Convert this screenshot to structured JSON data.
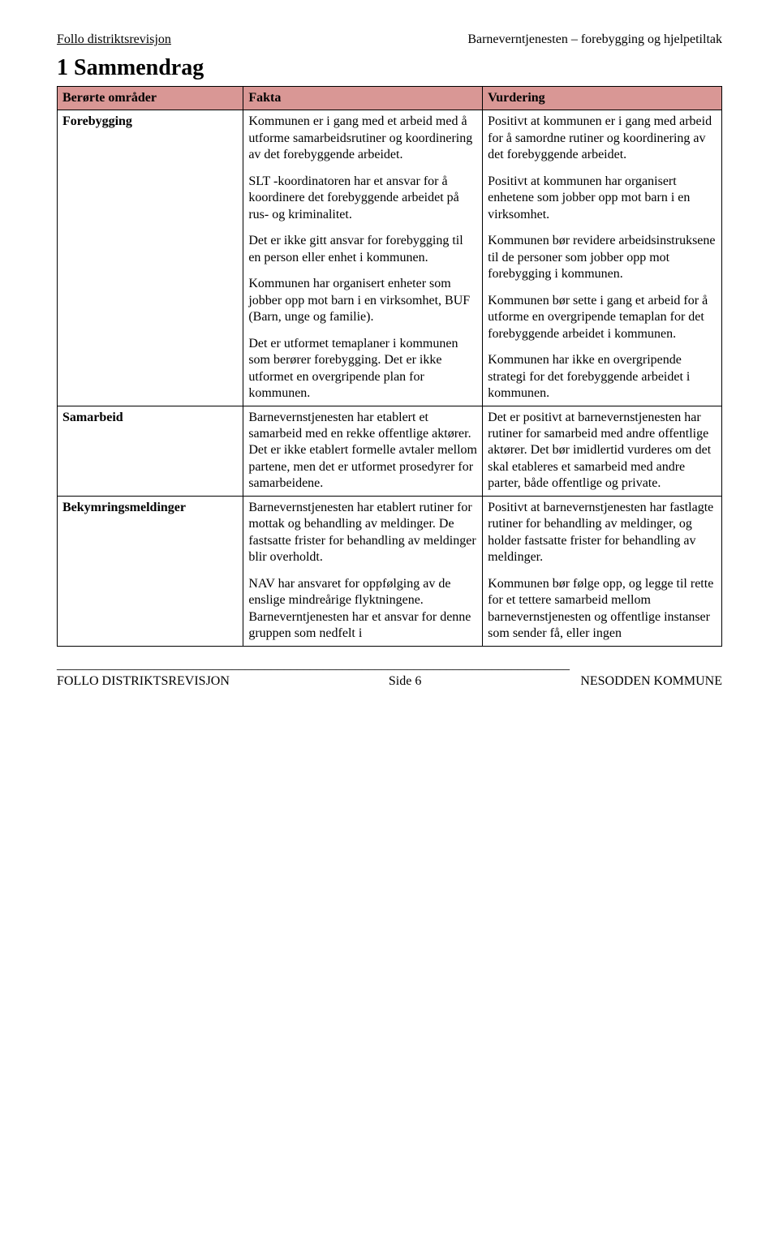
{
  "header": {
    "left": "Follo distriktsrevisjon",
    "right": "Barneverntjenesten – forebygging og hjelpetiltak"
  },
  "title": "1  Sammendrag",
  "table": {
    "header_bg": "#d99795",
    "columns": [
      "Berørte områder",
      "Fakta",
      "Vurdering"
    ],
    "rows": [
      {
        "label": "Forebygging",
        "fakta": [
          "Kommunen er i gang med et arbeid med å utforme samarbeidsrutiner og koordinering av det forebyggende arbeidet.",
          "SLT -koordinatoren har et ansvar for å koordinere det forebyggende arbeidet på rus- og kriminalitet.",
          "Det er ikke gitt ansvar for forebygging til en person eller enhet i kommunen.",
          "Kommunen har organisert enheter som jobber opp mot barn i en virksomhet, BUF (Barn, unge og familie).",
          "Det er utformet temaplaner i kommunen som berører forebygging. Det er ikke utformet en overgripende plan for kommunen."
        ],
        "vurdering": [
          "Positivt at kommunen er i gang med arbeid for å samordne rutiner og koordinering av det forebyggende arbeidet.",
          "Positivt at kommunen har organisert enhetene som jobber opp mot barn i en virksomhet.",
          "Kommunen bør revidere arbeidsinstruksene til de personer som jobber opp mot forebygging i kommunen.",
          "Kommunen bør sette i gang et arbeid for å utforme en overgripende temaplan for det forebyggende arbeidet i kommunen.",
          "Kommunen har ikke en overgripende strategi for det forebyggende arbeidet i kommunen."
        ]
      },
      {
        "label": "Samarbeid",
        "fakta": [
          "Barnevernstjenesten har etablert et samarbeid med en rekke offentlige aktører. Det er ikke etablert formelle avtaler mellom partene, men det er utformet prosedyrer for samarbeidene."
        ],
        "vurdering": [
          "Det er positivt at barnevernstjenesten har rutiner for samarbeid med andre offentlige aktører. Det bør imidlertid vurderes om det skal etableres et samarbeid med andre parter, både offentlige og private."
        ]
      },
      {
        "label": "Bekymringsmeldinger",
        "fakta": [
          "Barnevernstjenesten har etablert rutiner for mottak og behandling av meldinger. De fastsatte frister for behandling av meldinger blir overholdt.",
          "NAV har ansvaret for oppfølging av de enslige mindreårige flyktningene. Barneverntjenesten har et ansvar for denne gruppen som nedfelt i"
        ],
        "vurdering": [
          "Positivt at barnevernstjenesten har fastlagte rutiner for behandling av meldinger, og holder fastsatte frister for behandling av meldinger.",
          "Kommunen bør følge opp, og legge til rette for et tettere samarbeid mellom barnevernstjenesten og offentlige instanser som sender få, eller ingen"
        ]
      }
    ]
  },
  "footer": {
    "separator": "_______________________________________________________________________________",
    "left": "FOLLO DISTRIKTSREVISJON",
    "center": "Side 6",
    "right": "NESODDEN KOMMUNE"
  }
}
